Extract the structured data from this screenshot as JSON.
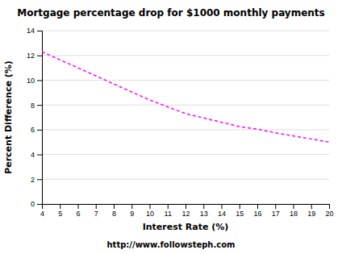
{
  "chart_data": {
    "type": "line",
    "title": "Mortgage percentage drop for $1000 monthly payments",
    "x_label": "Interest Rate (%)",
    "y_label": "Percent Difference (%)",
    "x": [
      4,
      5,
      6,
      7,
      8,
      9,
      10,
      11,
      12,
      13,
      14,
      15,
      16,
      17,
      18,
      19,
      20
    ],
    "values": [
      12.3,
      11.65,
      11.0,
      10.35,
      9.7,
      9.05,
      8.4,
      7.85,
      7.3,
      6.95,
      6.6,
      6.25,
      6.05,
      5.75,
      5.5,
      5.25,
      5.0
    ],
    "color": "#FF00FF",
    "line_style": "dashed",
    "xlim": [
      4,
      20
    ],
    "ylim": [
      0,
      14
    ],
    "xticks": [
      4,
      5,
      6,
      7,
      8,
      9,
      10,
      11,
      12,
      13,
      14,
      15,
      16,
      17,
      18,
      19,
      20
    ],
    "yticks": [
      0,
      2,
      4,
      6,
      8,
      10,
      12,
      14
    ],
    "grid": true,
    "annotations": [
      "http://www.followsteph.com"
    ]
  }
}
